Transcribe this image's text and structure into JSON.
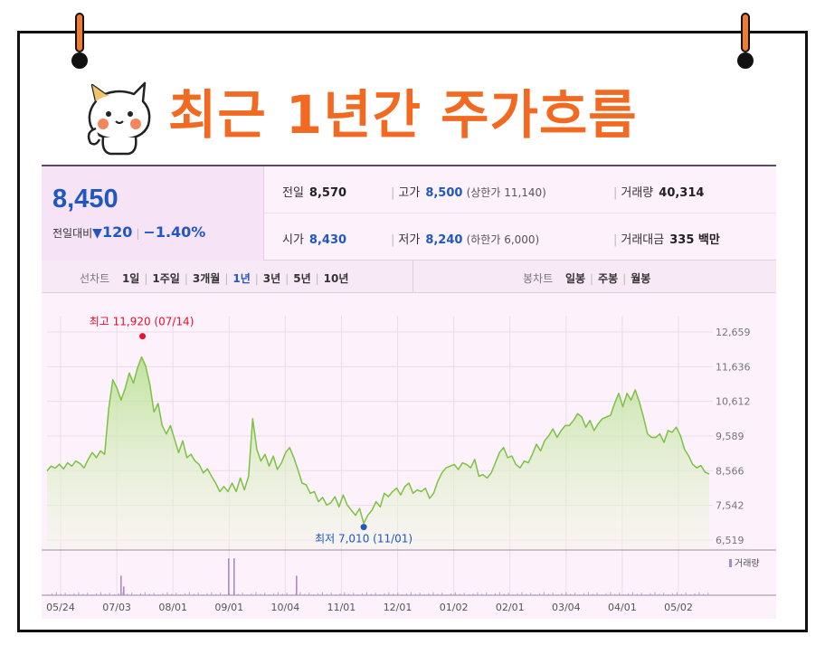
{
  "title": "최근 1년간 주가흐름",
  "quote": {
    "price": "8,450",
    "change_label": "전일대비",
    "change_icon": "triangle-down-icon",
    "change_amount": "120",
    "change_pct": "−1.40%",
    "prev_close_label": "전일",
    "prev_close": "8,570",
    "high_label": "고가",
    "high": "8,500",
    "high_limit": "(상한가 11,140)",
    "volume_label": "거래량",
    "volume": "40,314",
    "open_label": "시가",
    "open": "8,430",
    "low_label": "저가",
    "low": "8,240",
    "low_limit": "(하한가 6,000)",
    "amount_label": "거래대금",
    "amount": "335 백만"
  },
  "periods": {
    "line_label": "선차트",
    "line_items": [
      "1일",
      "1주일",
      "3개월",
      "1년",
      "3년",
      "5년",
      "10년"
    ],
    "active": "1년",
    "candle_label": "봉차트",
    "candle_items": [
      "일봉",
      "주봉",
      "월봉"
    ]
  },
  "colors": {
    "accent": "#f26a21",
    "up": "#e8102a",
    "down": "#1f57c3",
    "line": "#7cc242",
    "volume": "#a98ad0"
  },
  "chart_data": {
    "type": "area",
    "x_tick_labels": [
      "05/24",
      "07/03",
      "08/01",
      "09/01",
      "10/04",
      "11/01",
      "12/01",
      "01/02",
      "02/01",
      "03/04",
      "04/01",
      "05/02"
    ],
    "y_tick_labels": [
      "12,659",
      "11,636",
      "10,612",
      "9,589",
      "8,566",
      "7,542",
      "6,519"
    ],
    "ylim": [
      6519,
      12659
    ],
    "grid": true,
    "legend": "none",
    "series": [
      {
        "values": [
          8560,
          8700,
          8640,
          8760,
          8620,
          8800,
          8700,
          8850,
          8780,
          8650,
          8900,
          9100,
          8950,
          9150,
          9050,
          10400,
          11250,
          11000,
          10650,
          11000,
          11450,
          11150,
          11600,
          11920,
          11650,
          11100,
          10300,
          10550,
          9900,
          9650,
          9900,
          9500,
          9100,
          9450,
          8950,
          9050,
          8850,
          8750,
          8500,
          8620,
          8400,
          8200,
          7950,
          8100,
          7950,
          8200,
          7950,
          8350,
          8000,
          8400,
          10100,
          9200,
          8850,
          9050,
          8700,
          9000,
          8600,
          8800,
          9100,
          9250,
          8950,
          8600,
          8200,
          8150,
          7900,
          7950,
          7650,
          7780,
          7550,
          7620,
          7800,
          7500,
          7850,
          7550,
          7400,
          7250,
          7450,
          7010,
          7250,
          7400,
          7650,
          7500,
          7900,
          7800,
          7950,
          8050,
          7850,
          8100,
          8200,
          7900,
          8000,
          7950,
          8050,
          7750,
          7900,
          8250,
          8500,
          8650,
          8700,
          8750,
          8600,
          8800,
          8750,
          8650,
          8900,
          8400,
          8450,
          8350,
          8500,
          8800,
          9100,
          9250,
          8950,
          9000,
          8750,
          8650,
          8850,
          8800,
          9050,
          9350,
          9150,
          9450,
          9600,
          9800,
          9550,
          9750,
          9900,
          9900,
          10050,
          10250,
          10150,
          9850,
          10050,
          9750,
          9950,
          10100,
          10150,
          10200,
          10550,
          10850,
          10450,
          10850,
          10650,
          10950,
          10600,
          10150,
          9650,
          9550,
          9550,
          9650,
          9400,
          9750,
          9700,
          9850,
          9600,
          9200,
          9000,
          8750,
          8650,
          8720,
          8520,
          8470
        ]
      }
    ],
    "volume": {
      "label": "거래량",
      "spikes": [
        {
          "date": "07/03",
          "value": 0.45
        },
        {
          "date": "07/05",
          "value": 0.2
        },
        {
          "date": "08/25",
          "value": 0.85
        },
        {
          "date": "08/28",
          "value": 0.85
        },
        {
          "date": "10/03",
          "value": 0.45
        }
      ]
    },
    "annotations": [
      {
        "label": "최고 11,920 (07/14)",
        "value": 11920,
        "date": "07/14"
      },
      {
        "label": "최저 7,010 (11/01)",
        "value": 7010,
        "date": "11/01"
      }
    ]
  }
}
